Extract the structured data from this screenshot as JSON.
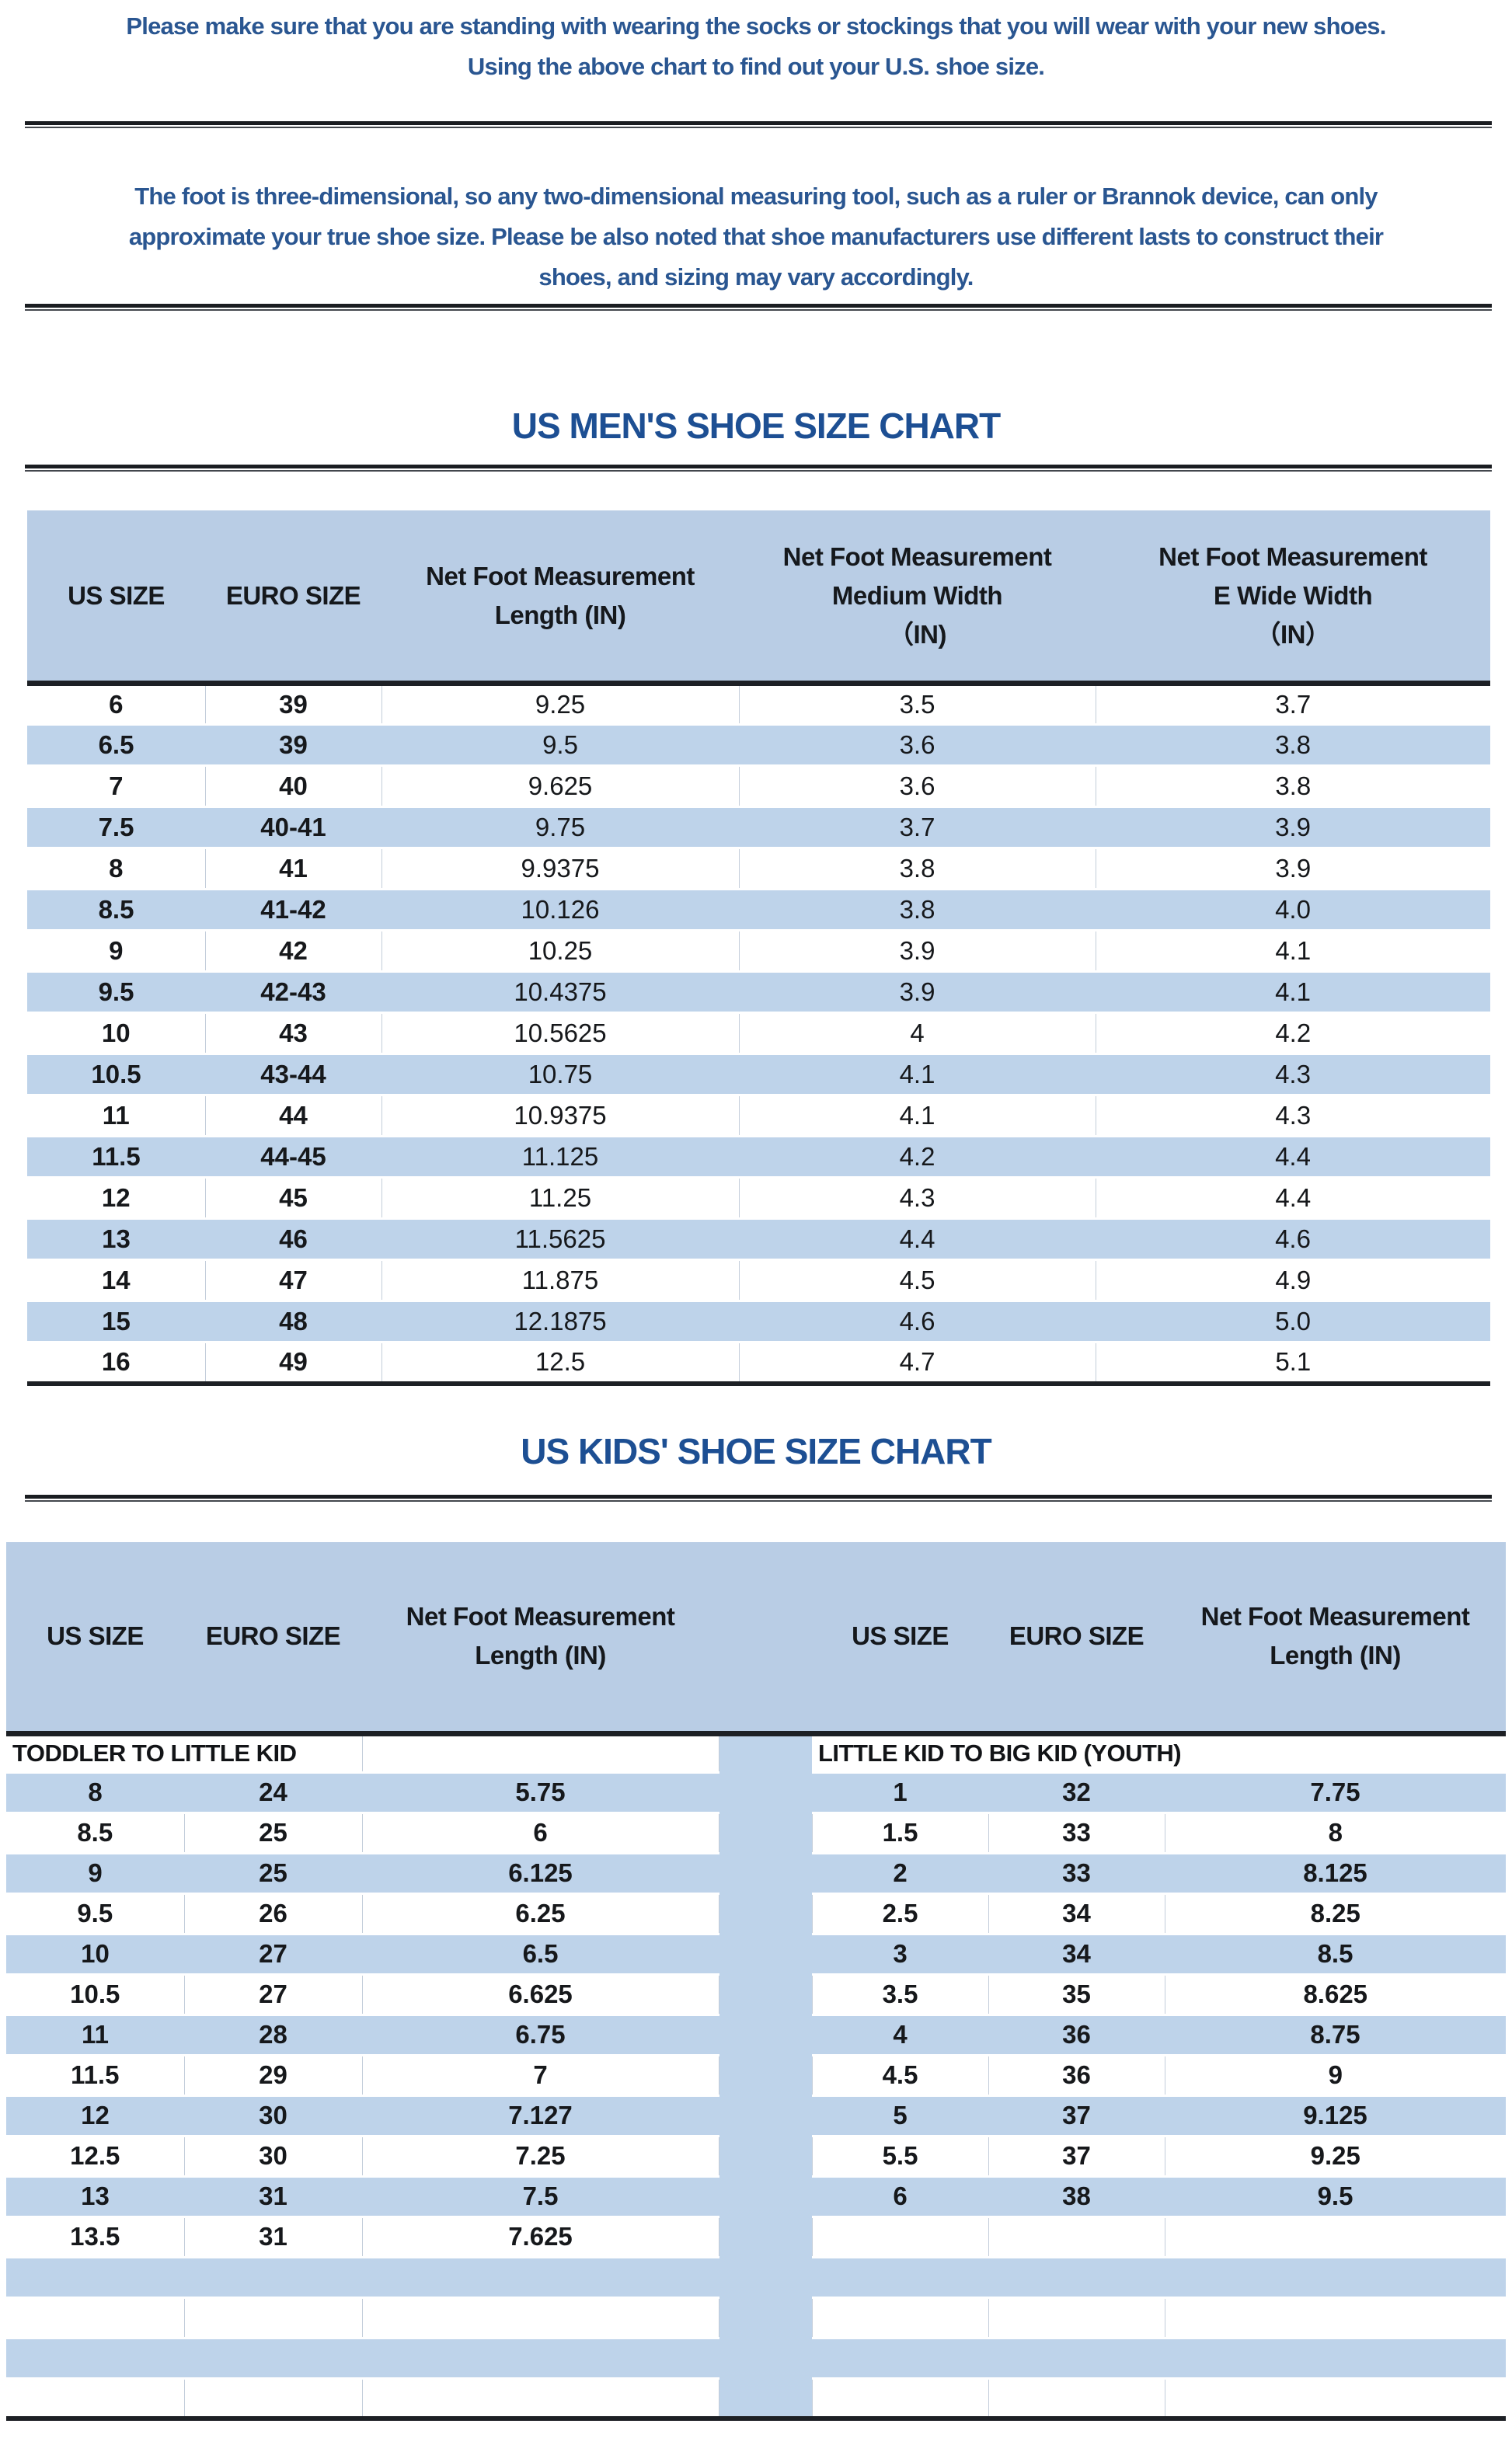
{
  "page": {
    "intro_line1": "Please make sure that you are standing with wearing the socks or stockings that you will wear with your new shoes.",
    "intro_line2": "Using the above chart to find out your U.S. shoe size.",
    "note_line1": "The foot is three-dimensional, so any two-dimensional measuring tool, such as a ruler or Brannok device, can only",
    "note_line2": "approximate your true shoe size. Please be also noted that shoe manufacturers use different lasts to construct their",
    "note_line3": "shoes, and sizing may vary accordingly."
  },
  "colors": {
    "heading_blue": "#1d4f93",
    "text_blue": "#2a5691",
    "header_fill_blue": "#b9cde5",
    "row_stripe_blue": "#bed3ea",
    "rule_dark": "#1a1d21"
  },
  "mens_chart": {
    "title": "US MEN'S SHOE SIZE CHART",
    "columns": [
      [
        "US SIZE"
      ],
      [
        "EURO SIZE"
      ],
      [
        "Net Foot Measurement",
        "Length (IN)"
      ],
      [
        "Net Foot Measurement",
        "Medium Width",
        "（IN)"
      ],
      [
        "Net Foot Measurement",
        "E Wide Width",
        "（IN）"
      ]
    ],
    "rows": [
      [
        "6",
        "39",
        "9.25",
        "3.5",
        "3.7"
      ],
      [
        "6.5",
        "39",
        "9.5",
        "3.6",
        "3.8"
      ],
      [
        "7",
        "40",
        "9.625",
        "3.6",
        "3.8"
      ],
      [
        "7.5",
        "40-41",
        "9.75",
        "3.7",
        "3.9"
      ],
      [
        "8",
        "41",
        "9.9375",
        "3.8",
        "3.9"
      ],
      [
        "8.5",
        "41-42",
        "10.126",
        "3.8",
        "4.0"
      ],
      [
        "9",
        "42",
        "10.25",
        "3.9",
        "4.1"
      ],
      [
        "9.5",
        "42-43",
        "10.4375",
        "3.9",
        "4.1"
      ],
      [
        "10",
        "43",
        "10.5625",
        "4",
        "4.2"
      ],
      [
        "10.5",
        "43-44",
        "10.75",
        "4.1",
        "4.3"
      ],
      [
        "11",
        "44",
        "10.9375",
        "4.1",
        "4.3"
      ],
      [
        "11.5",
        "44-45",
        "11.125",
        "4.2",
        "4.4"
      ],
      [
        "12",
        "45",
        "11.25",
        "4.3",
        "4.4"
      ],
      [
        "13",
        "46",
        "11.5625",
        "4.4",
        "4.6"
      ],
      [
        "14",
        "47",
        "11.875",
        "4.5",
        "4.9"
      ],
      [
        "15",
        "48",
        "12.1875",
        "4.6",
        "5.0"
      ],
      [
        "16",
        "49",
        "12.5",
        "4.7",
        "5.1"
      ]
    ]
  },
  "kids_chart": {
    "title": "US KIDS' SHOE SIZE CHART",
    "columns": [
      [
        "US SIZE"
      ],
      [
        "EURO SIZE"
      ],
      [
        "Net Foot Measurement",
        "Length (IN)"
      ],
      [
        ""
      ],
      [
        "US SIZE"
      ],
      [
        "EURO SIZE"
      ],
      [
        "Net Foot Measurement",
        "Length (IN)"
      ]
    ],
    "group_left": "TODDLER TO LITTLE KID",
    "group_right": "LITTLE KID TO BIG KID (YOUTH)",
    "rows_left": [
      [
        "8",
        "24",
        "5.75"
      ],
      [
        "8.5",
        "25",
        "6"
      ],
      [
        "9",
        "25",
        "6.125"
      ],
      [
        "9.5",
        "26",
        "6.25"
      ],
      [
        "10",
        "27",
        "6.5"
      ],
      [
        "10.5",
        "27",
        "6.625"
      ],
      [
        "11",
        "28",
        "6.75"
      ],
      [
        "11.5",
        "29",
        "7"
      ],
      [
        "12",
        "30",
        "7.127"
      ],
      [
        "12.5",
        "30",
        "7.25"
      ],
      [
        "13",
        "31",
        "7.5"
      ],
      [
        "13.5",
        "31",
        "7.625"
      ],
      [
        "",
        "",
        ""
      ],
      [
        "",
        "",
        ""
      ],
      [
        "",
        "",
        ""
      ],
      [
        "",
        "",
        ""
      ]
    ],
    "rows_right": [
      [
        "1",
        "32",
        "7.75"
      ],
      [
        "1.5",
        "33",
        "8"
      ],
      [
        "2",
        "33",
        "8.125"
      ],
      [
        "2.5",
        "34",
        "8.25"
      ],
      [
        "3",
        "34",
        "8.5"
      ],
      [
        "3.5",
        "35",
        "8.625"
      ],
      [
        "4",
        "36",
        "8.75"
      ],
      [
        "4.5",
        "36",
        "9"
      ],
      [
        "5",
        "37",
        "9.125"
      ],
      [
        "5.5",
        "37",
        "9.25"
      ],
      [
        "6",
        "38",
        "9.5"
      ],
      [
        "",
        "",
        ""
      ],
      [
        "",
        "",
        ""
      ],
      [
        "",
        "",
        ""
      ],
      [
        "",
        "",
        ""
      ],
      [
        "",
        "",
        ""
      ]
    ]
  }
}
